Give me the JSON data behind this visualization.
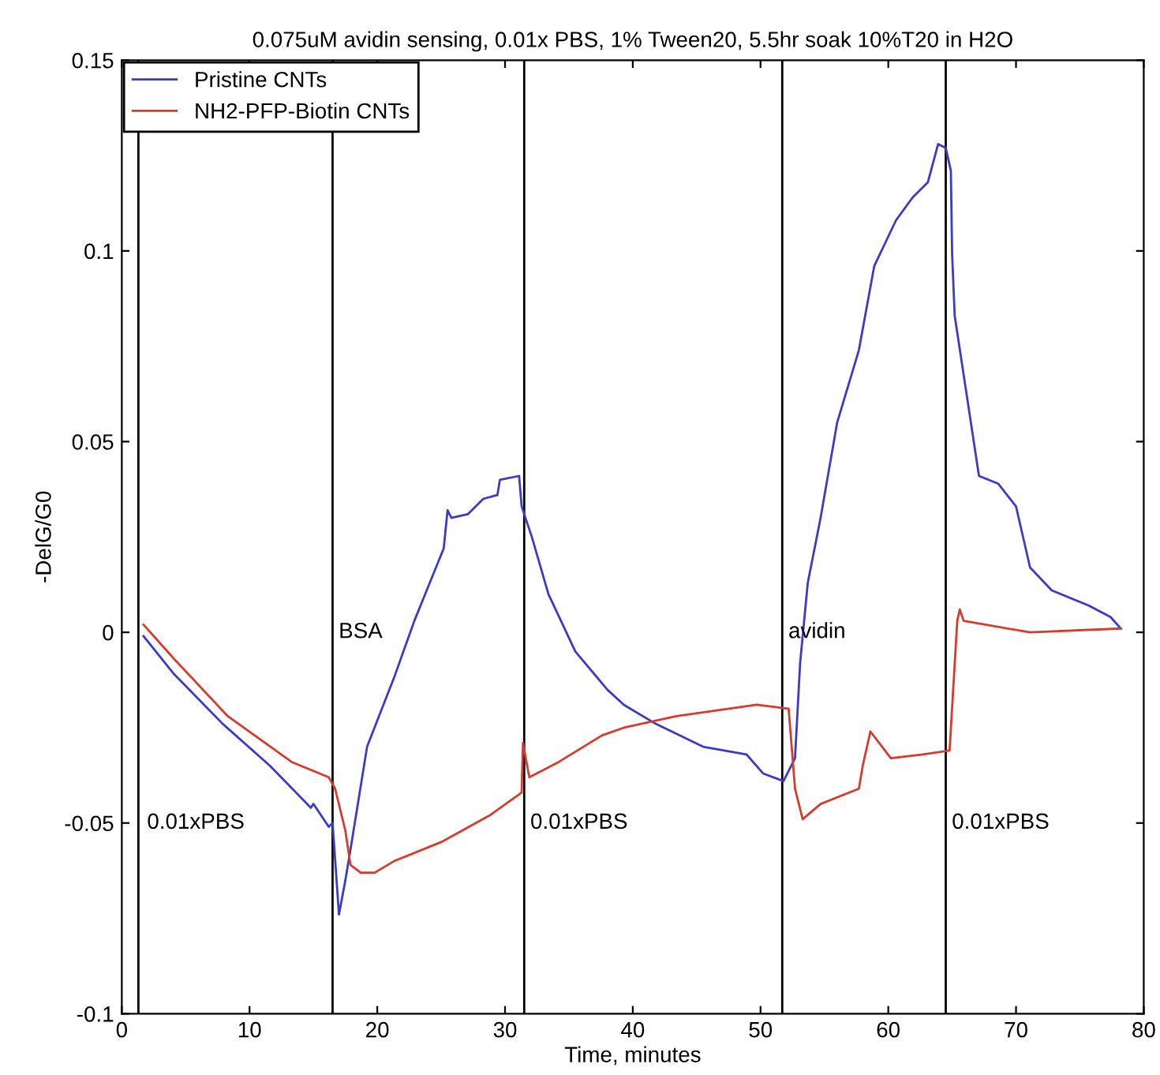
{
  "chart_data": {
    "type": "line",
    "title": "0.075uM avidin sensing, 0.01x PBS, 1% Tween20, 5.5hr soak 10%T20 in H2O",
    "xlabel": "Time, minutes",
    "ylabel": "-DelG/G0",
    "xlim": [
      0,
      80
    ],
    "ylim": [
      -0.1,
      0.15
    ],
    "xticks": [
      0,
      10,
      20,
      30,
      40,
      50,
      60,
      70,
      80
    ],
    "yticks": [
      -0.1,
      -0.05,
      0,
      0.05,
      0.1,
      0.15
    ],
    "grid": false,
    "legend": "top left",
    "line_style": "solid",
    "marker": "none",
    "series": [
      {
        "name": "Pristine CNTs",
        "color": "#3a3acc",
        "x": [
          1.7,
          4.1,
          7.9,
          11.6,
          14.8,
          15.0,
          16.2,
          16.5,
          17.0,
          17.5,
          17.9,
          19.2,
          21.3,
          22.9,
          25.2,
          25.5,
          25.8,
          27.1,
          28.3,
          29.4,
          29.6,
          31.1,
          31.3,
          32.1,
          33.4,
          35.5,
          38.0,
          39.3,
          41.8,
          45.5,
          48.9,
          50.2,
          51.8,
          52.7,
          53.1,
          53.7,
          54.7,
          56.0,
          57.7,
          58.9,
          60.6,
          61.9,
          63.1,
          63.9,
          64.5,
          64.9,
          65.0,
          65.2,
          67.1,
          68.6,
          70.0,
          71.1,
          72.8,
          75.7,
          77.4,
          78.2
        ],
        "values": [
          -0.001,
          -0.011,
          -0.024,
          -0.035,
          -0.046,
          -0.045,
          -0.051,
          -0.05,
          -0.074,
          -0.065,
          -0.057,
          -0.03,
          -0.012,
          0.003,
          0.022,
          0.032,
          0.03,
          0.031,
          0.035,
          0.036,
          0.04,
          0.041,
          0.033,
          0.025,
          0.01,
          -0.005,
          -0.015,
          -0.019,
          -0.024,
          -0.03,
          -0.032,
          -0.037,
          -0.039,
          -0.033,
          -0.008,
          0.013,
          0.03,
          0.055,
          0.074,
          0.096,
          0.108,
          0.114,
          0.118,
          0.128,
          0.127,
          0.121,
          0.099,
          0.083,
          0.041,
          0.039,
          0.033,
          0.017,
          0.011,
          0.007,
          0.004,
          0.001
        ]
      },
      {
        "name": "NH2-PFP-Biotin CNTs",
        "color": "#d93a2b",
        "x": [
          1.7,
          4.1,
          8.3,
          13.3,
          16.2,
          16.7,
          17.5,
          17.9,
          18.7,
          19.8,
          21.3,
          25.0,
          28.8,
          31.3,
          31.4,
          31.9,
          34.2,
          37.6,
          39.3,
          43.4,
          49.7,
          52.2,
          52.7,
          53.3,
          54.7,
          57.7,
          58.0,
          58.6,
          60.2,
          62.7,
          64.8,
          65.4,
          65.6,
          65.9,
          71.1,
          78.2
        ],
        "values": [
          0.002,
          -0.007,
          -0.022,
          -0.034,
          -0.038,
          -0.041,
          -0.052,
          -0.061,
          -0.063,
          -0.063,
          -0.06,
          -0.055,
          -0.048,
          -0.042,
          -0.029,
          -0.038,
          -0.034,
          -0.027,
          -0.025,
          -0.022,
          -0.019,
          -0.02,
          -0.041,
          -0.049,
          -0.045,
          -0.041,
          -0.035,
          -0.026,
          -0.033,
          -0.032,
          -0.031,
          0.003,
          0.006,
          0.003,
          0.0,
          0.001
        ]
      }
    ],
    "ref_lines": [
      {
        "axis": "x",
        "value": 1.3,
        "color": "#000000"
      },
      {
        "axis": "x",
        "value": 16.5,
        "color": "#000000"
      },
      {
        "axis": "x",
        "value": 31.5,
        "color": "#000000"
      },
      {
        "axis": "x",
        "value": 51.7,
        "color": "#000000"
      },
      {
        "axis": "x",
        "value": 64.5,
        "color": "#000000"
      }
    ],
    "annotations": [
      {
        "text": "0.01xPBS",
        "x": 1.5,
        "y": -0.05
      },
      {
        "text": "BSA",
        "x": 16.5,
        "y": 0
      },
      {
        "text": "0.01xPBS",
        "x": 31.5,
        "y": -0.05
      },
      {
        "text": "avidin",
        "x": 51.7,
        "y": 0
      },
      {
        "text": "0.01xPBS",
        "x": 64.5,
        "y": -0.05
      }
    ]
  }
}
